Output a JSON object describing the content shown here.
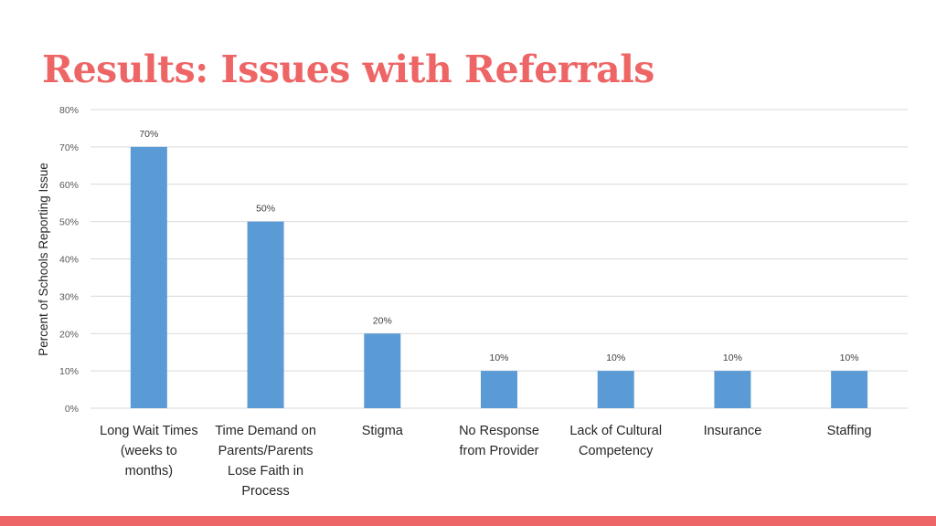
{
  "slide": {
    "title": "Results: Issues with Referrals"
  },
  "colors": {
    "title": "#ee6566",
    "bar": "#5b9bd5",
    "grid": "#d9d9d9",
    "bottom_bar": "#ee6566"
  },
  "chart_data": {
    "type": "bar",
    "categories": [
      [
        "Long Wait Times",
        "(weeks to",
        "months)"
      ],
      [
        "Time Demand on",
        "Parents/Parents",
        "Lose Faith in",
        "Process"
      ],
      [
        "Stigma"
      ],
      [
        "No Response",
        "from Provider"
      ],
      [
        "Lack of Cultural",
        "Competency"
      ],
      [
        "Insurance"
      ],
      [
        "Staffing"
      ]
    ],
    "values": [
      70,
      50,
      20,
      10,
      10,
      10,
      10
    ],
    "data_labels": [
      "70%",
      "50%",
      "20%",
      "10%",
      "10%",
      "10%",
      "10%"
    ],
    "yticks": [
      0,
      10,
      20,
      30,
      40,
      50,
      60,
      70,
      80
    ],
    "ytick_labels": [
      "0%",
      "10%",
      "20%",
      "30%",
      "40%",
      "50%",
      "60%",
      "70%",
      "80%"
    ],
    "ylim": [
      0,
      80
    ],
    "ylabel": "Percent of Schools Reporting Issue",
    "xlabel": "",
    "grid": true,
    "legend": false
  }
}
